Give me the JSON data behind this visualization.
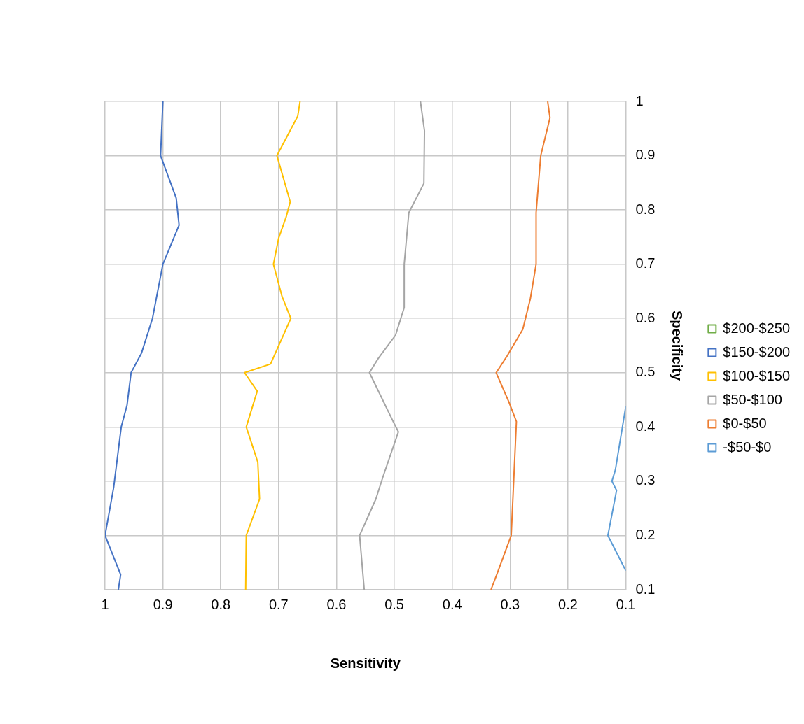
{
  "chart_data": {
    "type": "line",
    "xlabel": "Sensitivity",
    "ylabel": "Specificity",
    "xlim": [
      1,
      0.1
    ],
    "xticks": [
      1,
      0.9,
      0.8,
      0.7,
      0.6,
      0.5,
      0.4,
      0.3,
      0.2,
      0.1
    ],
    "ylim": [
      0.1,
      1
    ],
    "yticks": [
      0.1,
      0.2,
      0.3,
      0.4,
      0.5,
      0.6,
      0.7,
      0.8,
      0.9,
      1
    ],
    "grid": true,
    "legend": "right",
    "marker": "none",
    "line_style": "solid",
    "series": [
      {
        "name": "$200-$250",
        "color": "#70ad47"
      },
      {
        "name": "$150-$200",
        "color": "#4472c4",
        "x": [
          0.9,
          0.904,
          0.877,
          0.872,
          0.9,
          0.918,
          0.937,
          0.955,
          0.962,
          0.972,
          0.985,
          1,
          0.973,
          0.977
        ],
        "values": [
          1,
          0.9,
          0.822,
          0.772,
          0.7,
          0.6,
          0.536,
          0.5,
          0.44,
          0.4,
          0.289,
          0.2,
          0.128,
          0.1
        ]
      },
      {
        "name": "$100-$150",
        "color": "#ffc000",
        "x": [
          0.663,
          0.667,
          0.703,
          0.68,
          0.687,
          0.7,
          0.709,
          0.694,
          0.679,
          0.714,
          0.759,
          0.737,
          0.756,
          0.736,
          0.733,
          0.756,
          0.757
        ],
        "values": [
          1,
          0.973,
          0.9,
          0.815,
          0.787,
          0.748,
          0.7,
          0.64,
          0.6,
          0.516,
          0.5,
          0.466,
          0.4,
          0.335,
          0.267,
          0.2,
          0.1
        ]
      },
      {
        "name": "$50-$100",
        "color": "#a5a5a5",
        "x": [
          0.455,
          0.448,
          0.449,
          0.475,
          0.483,
          0.483,
          0.498,
          0.528,
          0.543,
          0.502,
          0.493,
          0.52,
          0.532,
          0.56,
          0.552
        ],
        "values": [
          1,
          0.946,
          0.849,
          0.795,
          0.7,
          0.62,
          0.569,
          0.526,
          0.5,
          0.41,
          0.391,
          0.307,
          0.267,
          0.2,
          0.1
        ]
      },
      {
        "name": "$0-$50",
        "color": "#ed7d31",
        "x": [
          0.235,
          0.231,
          0.247,
          0.255,
          0.255,
          0.265,
          0.278,
          0.305,
          0.324,
          0.302,
          0.289,
          0.298,
          0.323,
          0.333
        ],
        "values": [
          1,
          0.97,
          0.9,
          0.795,
          0.7,
          0.636,
          0.58,
          0.531,
          0.5,
          0.446,
          0.41,
          0.2,
          0.128,
          0.1
        ]
      },
      {
        "name": "-$50-$0",
        "color": "#5b9bd5",
        "x": [
          0.1,
          0.118,
          0.124,
          0.116,
          0.131,
          0.1
        ],
        "values": [
          0.438,
          0.321,
          0.3,
          0.283,
          0.2,
          0.135
        ]
      }
    ]
  }
}
